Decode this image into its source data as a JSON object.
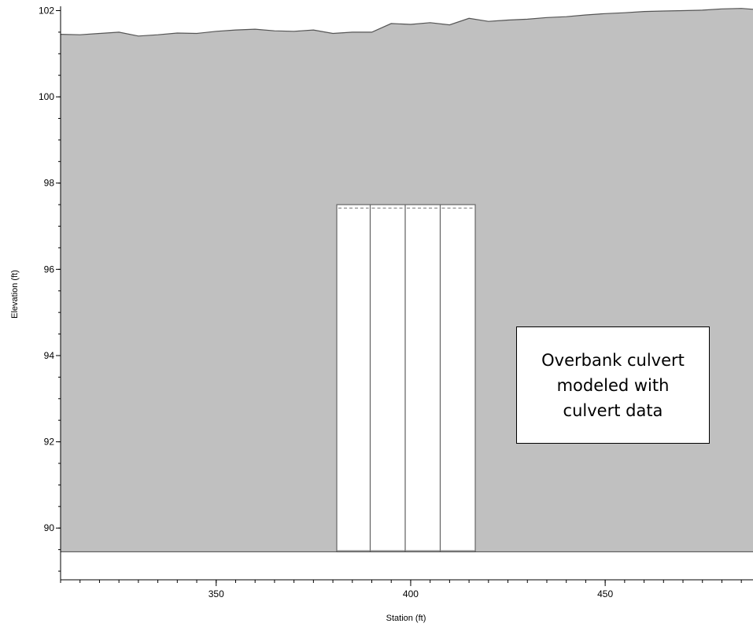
{
  "chart_data": {
    "type": "area",
    "title": "",
    "xlabel": "Station (ft)",
    "ylabel": "Elevation (ft)",
    "xlim": [
      310,
      488
    ],
    "ylim": [
      88.8,
      102.1
    ],
    "xticks": [
      350,
      400,
      450
    ],
    "yticks": [
      90,
      92,
      94,
      96,
      98,
      100,
      102
    ],
    "grid": false,
    "legend": "none",
    "channel_invert_elevation": 89.45,
    "ground_profile": {
      "x": [
        310,
        315,
        320,
        325,
        330,
        335,
        340,
        345,
        350,
        355,
        360,
        365,
        370,
        375,
        380,
        385,
        390,
        395,
        400,
        405,
        410,
        415,
        420,
        425,
        430,
        435,
        440,
        445,
        450,
        455,
        460,
        465,
        470,
        475,
        480,
        485,
        488
      ],
      "y": [
        101.45,
        101.44,
        101.47,
        101.5,
        101.41,
        101.44,
        101.48,
        101.47,
        101.52,
        101.55,
        101.57,
        101.53,
        101.52,
        101.55,
        101.47,
        101.5,
        101.5,
        101.7,
        101.68,
        101.72,
        101.67,
        101.82,
        101.75,
        101.78,
        101.8,
        101.84,
        101.86,
        101.9,
        101.93,
        101.95,
        101.98,
        101.99,
        102.0,
        102.01,
        102.04,
        102.05,
        102.03
      ]
    },
    "culvert": {
      "barrels": [
        {
          "left": 381,
          "right": 389.6
        },
        {
          "left": 389.6,
          "right": 398.6
        },
        {
          "left": 398.6,
          "right": 407.6
        },
        {
          "left": 407.6,
          "right": 416.6
        }
      ],
      "invert": 89.45,
      "top": 97.5,
      "water_surface": 97.42
    },
    "colors": {
      "ground_fill": "#c0c0c0",
      "ground_line": "#555555",
      "culvert_fill": "#ffffff",
      "barrel_edge": "#666666",
      "axis": "#000000"
    },
    "annotation": {
      "text_lines": [
        "Overbank culvert",
        "modeled with",
        "culvert data"
      ]
    }
  }
}
